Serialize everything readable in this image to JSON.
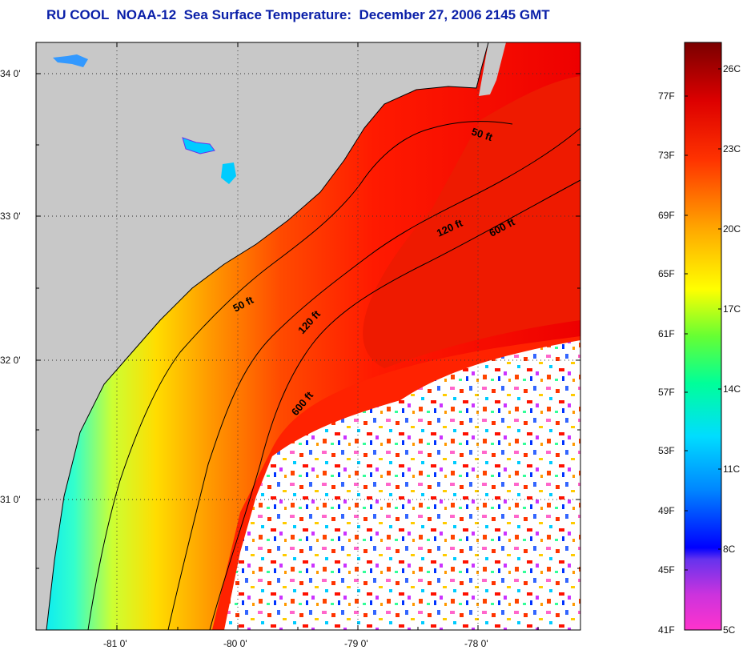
{
  "title": "RU COOL  NOAA-12  Sea Surface Temperature:  December 27, 2006 2145 GMT",
  "map": {
    "lat_labels": [
      "34 0'",
      "33 0'",
      "32 0'",
      "31 0'"
    ],
    "lon_labels": [
      "-81 0'",
      "-80 0'",
      "-79 0'",
      "-78 0'"
    ],
    "isobaths": {
      "shallow": [
        "50 ft",
        "50 ft"
      ],
      "mid": [
        "120 ft",
        "120 ft"
      ],
      "deep": [
        "600 ft",
        "600 ft"
      ]
    },
    "colors": {
      "land": "#c8c8c8",
      "coast": "#000000",
      "cloud": "#ffffff"
    }
  },
  "colorbar": {
    "fahrenheit": [
      "77F",
      "73F",
      "69F",
      "65F",
      "61F",
      "57F",
      "53F",
      "49F",
      "45F",
      "41F"
    ],
    "celsius": [
      "26C",
      "23C",
      "20C",
      "17C",
      "14C",
      "11C",
      "8C",
      "5C"
    ],
    "range_c": [
      5,
      27
    ],
    "colors": [
      "#ff33cc",
      "#9933dd",
      "#0000ff",
      "#0099ff",
      "#00ffff",
      "#00ff99",
      "#66ff33",
      "#ffff00",
      "#ff9900",
      "#ff3300",
      "#dd0000",
      "#7a0000"
    ]
  }
}
